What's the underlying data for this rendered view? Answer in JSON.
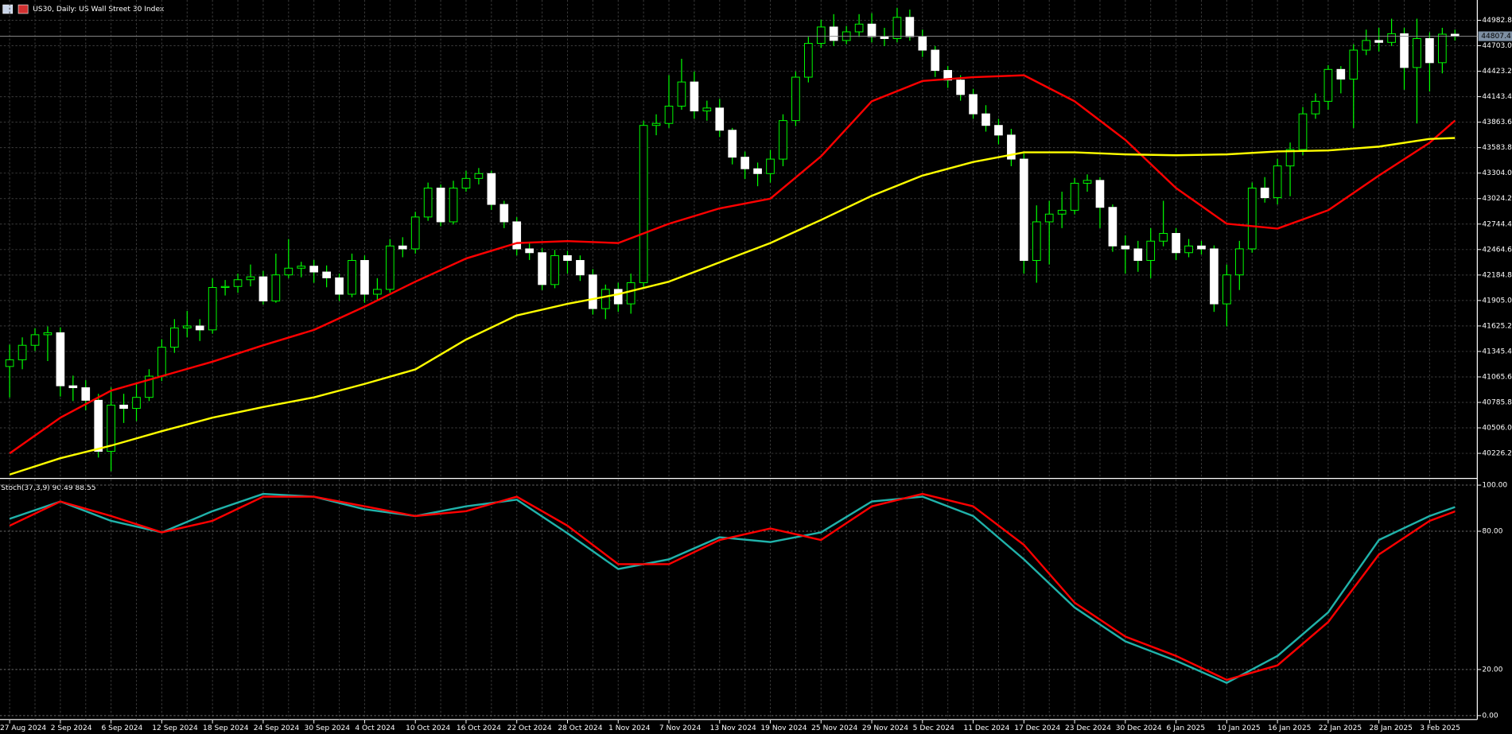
{
  "chart_data": [
    {
      "type": "candlestick",
      "title": "US30, Daily:  US Wall Street 30 Index",
      "categories": [
        "27 Aug 2024",
        null,
        null,
        null,
        "2 Sep 2024",
        null,
        null,
        null,
        "6 Sep 2024",
        null,
        null,
        null,
        "12 Sep 2024",
        null,
        null,
        null,
        "18 Sep 2024",
        null,
        null,
        null,
        "24 Sep 2024",
        null,
        null,
        null,
        "30 Sep 2024",
        null,
        null,
        null,
        "4 Oct 2024",
        null,
        null,
        null,
        "10 Oct 2024",
        null,
        null,
        null,
        "16 Oct 2024",
        null,
        null,
        null,
        "22 Oct 2024",
        null,
        null,
        null,
        "28 Oct 2024",
        null,
        null,
        null,
        "1 Nov 2024",
        null,
        null,
        null,
        "7 Nov 2024",
        null,
        null,
        null,
        "13 Nov 2024",
        null,
        null,
        null,
        "19 Nov 2024",
        null,
        null,
        null,
        "25 Nov 2024",
        null,
        null,
        null,
        "29 Nov 2024",
        null,
        null,
        null,
        "5 Dec 2024",
        null,
        null,
        null,
        "11 Dec 2024",
        null,
        null,
        null,
        "17 Dec 2024",
        null,
        null,
        null,
        "23 Dec 2024",
        null,
        null,
        null,
        "30 Dec 2024",
        null,
        null,
        null,
        "6 Jan 2025",
        null,
        null,
        null,
        "10 Jan 2025",
        null,
        null,
        null,
        "16 Jan 2025",
        null,
        null,
        null,
        "22 Jan 2025",
        null,
        null,
        null,
        "28 Jan 2025",
        null,
        null,
        null,
        "3 Feb 2025",
        null,
        null
      ],
      "open": [
        41180,
        41254,
        41413,
        41529,
        41551,
        40968,
        40947,
        40809,
        40248,
        40756,
        40720,
        40841,
        41074,
        41392,
        41604,
        41625,
        41582,
        42048,
        42059,
        42133,
        42165,
        41900,
        42186,
        42260,
        42282,
        42218,
        42154,
        41974,
        42345,
        41974,
        42027,
        42504,
        42472,
        42822,
        43140,
        42769,
        43140,
        43246,
        43299,
        42960,
        42769,
        42472,
        42430,
        42080,
        42398,
        42345,
        42186,
        41816,
        42027,
        41868,
        42100,
        43828,
        43850,
        44040,
        44305,
        43987,
        44019,
        43775,
        43479,
        43352,
        43299,
        43458,
        43881,
        44358,
        44729,
        44909,
        44761,
        44856,
        44941,
        44803,
        44782,
        45015,
        44803,
        44655,
        44432,
        44326,
        44167,
        43955,
        43828,
        43722,
        43458,
        42345,
        42769,
        42854,
        42896,
        43193,
        43224,
        42928,
        42504,
        42472,
        42345,
        42557,
        42642,
        42430,
        42504,
        42472,
        41868,
        42186,
        42472,
        43140,
        43034,
        43383,
        43563,
        43955,
        44093,
        44443,
        44337,
        44655,
        44761,
        44740,
        44835,
        44464,
        44782,
        44517,
        44830
      ],
      "high": [
        41420,
        41500,
        41600,
        41620,
        41610,
        41080,
        41030,
        40880,
        40950,
        40880,
        41000,
        41150,
        41480,
        41700,
        41790,
        41700,
        42150,
        42130,
        42200,
        42300,
        42230,
        42420,
        42580,
        42330,
        42350,
        42290,
        42200,
        42420,
        42400,
        42150,
        42580,
        42600,
        42880,
        43200,
        43180,
        43220,
        43330,
        43360,
        43330,
        43000,
        42820,
        42550,
        42480,
        42460,
        42450,
        42400,
        42250,
        42080,
        42100,
        42200,
        43880,
        43950,
        44380,
        44560,
        44420,
        44100,
        44120,
        43800,
        43540,
        43420,
        43560,
        43950,
        44420,
        44800,
        44990,
        45050,
        44920,
        45050,
        45060,
        44900,
        45120,
        45100,
        44880,
        44700,
        44480,
        44380,
        44230,
        44050,
        43900,
        43790,
        43520,
        42950,
        43000,
        43100,
        43250,
        43290,
        43260,
        42960,
        42620,
        42560,
        42700,
        43000,
        42700,
        42580,
        42560,
        42510,
        42300,
        42560,
        43200,
        43260,
        43460,
        43640,
        44030,
        44180,
        44490,
        44480,
        44720,
        44880,
        44900,
        45000,
        44900,
        45000,
        44850,
        44900,
        44880
      ],
      "low": [
        40840,
        41150,
        41350,
        41240,
        40850,
        40800,
        40700,
        40180,
        40030,
        40560,
        40580,
        40800,
        41020,
        41330,
        41500,
        41460,
        41540,
        41960,
        41990,
        42060,
        41860,
        41880,
        42150,
        42160,
        42100,
        42050,
        41900,
        41940,
        41880,
        41900,
        41990,
        42380,
        42420,
        42780,
        42720,
        42740,
        43100,
        43180,
        42900,
        42700,
        42400,
        42350,
        42020,
        42040,
        42200,
        42120,
        41750,
        41700,
        41780,
        41760,
        42050,
        43720,
        43800,
        44000,
        43900,
        43880,
        43700,
        43400,
        43240,
        43160,
        43200,
        43380,
        43820,
        44300,
        44680,
        44700,
        44720,
        44800,
        44740,
        44700,
        44740,
        44760,
        44580,
        44360,
        44240,
        44100,
        43900,
        43760,
        43620,
        43380,
        42200,
        42100,
        42300,
        42700,
        42850,
        43100,
        42700,
        42440,
        42200,
        42220,
        42150,
        42500,
        42350,
        42380,
        42410,
        41780,
        41620,
        42020,
        42430,
        42980,
        42960,
        43050,
        43500,
        43900,
        44000,
        44180,
        43800,
        44600,
        44640,
        44700,
        44220,
        43850,
        44200,
        44400,
        44760
      ],
      "close": [
        41254,
        41413,
        41529,
        41551,
        40968,
        40947,
        40809,
        40248,
        40756,
        40720,
        40841,
        41074,
        41392,
        41604,
        41625,
        41582,
        42048,
        42059,
        42133,
        42165,
        41900,
        42186,
        42260,
        42282,
        42218,
        42154,
        41974,
        42345,
        41974,
        42027,
        42504,
        42472,
        42822,
        43140,
        42769,
        43140,
        43246,
        43299,
        42960,
        42769,
        42472,
        42430,
        42080,
        42398,
        42345,
        42186,
        41816,
        42027,
        41868,
        42100,
        43828,
        43850,
        44040,
        44305,
        43987,
        44019,
        43775,
        43479,
        43352,
        43299,
        43458,
        43881,
        44358,
        44729,
        44909,
        44761,
        44856,
        44941,
        44803,
        44782,
        45015,
        44803,
        44655,
        44432,
        44326,
        44167,
        43955,
        43828,
        43722,
        43458,
        42345,
        42769,
        42854,
        42896,
        43193,
        43224,
        42928,
        42504,
        42472,
        42345,
        42557,
        42642,
        42430,
        42504,
        42472,
        41868,
        42186,
        42472,
        43140,
        43034,
        43383,
        43563,
        43955,
        44093,
        44443,
        44337,
        44655,
        44761,
        44740,
        44835,
        44464,
        44782,
        44517,
        44830,
        44807.4
      ],
      "up_color": "#00ff00",
      "down_color": "#ffffff",
      "series": [
        {
          "color": "#ff0000",
          "x": [
            0,
            4,
            8,
            12,
            16,
            20,
            24,
            28,
            32,
            36,
            40,
            44,
            48,
            52,
            56,
            60,
            64,
            68,
            72,
            76,
            80,
            84,
            88,
            92,
            96,
            100,
            104,
            108,
            112,
            114
          ],
          "values": [
            40226,
            40618,
            40915,
            41074,
            41233,
            41413,
            41582,
            41837,
            42112,
            42366,
            42536,
            42557,
            42536,
            42748,
            42917,
            43023,
            43489,
            44093,
            44316,
            44358,
            44379,
            44093,
            43669,
            43140,
            42748,
            42695,
            42896,
            43277,
            43638,
            43881
          ]
        },
        {
          "color": "#ffff00",
          "x": [
            0,
            4,
            8,
            12,
            16,
            20,
            24,
            28,
            32,
            36,
            40,
            44,
            48,
            52,
            56,
            60,
            64,
            68,
            72,
            76,
            80,
            84,
            88,
            92,
            96,
            100,
            104,
            108,
            112,
            114
          ],
          "values": [
            39993,
            40173,
            40311,
            40470,
            40618,
            40735,
            40841,
            40989,
            41148,
            41476,
            41741,
            41868,
            41974,
            42112,
            42324,
            42536,
            42790,
            43055,
            43277,
            43426,
            43532,
            43532,
            43510,
            43500,
            43510,
            43542,
            43553,
            43595,
            43680,
            43690
          ]
        }
      ],
      "last_price": 44807.4,
      "ylim": [
        39961.5,
        45205.5
      ],
      "yticks": [
        44982.8,
        {
          "value": 44703,
          "label": "44703.0"
        },
        44423.2,
        44143.4,
        43863.6,
        43583.8,
        {
          "value": 43304,
          "label": "43304.0"
        },
        43024.2,
        42744.4,
        42464.6,
        42184.8,
        {
          "value": 41905,
          "label": "41905.0"
        },
        41625.2,
        41345.4,
        41065.6,
        40785.8,
        {
          "value": 40506,
          "label": "40506.0"
        },
        40226.2
      ],
      "grid": true
    },
    {
      "type": "line",
      "title": "Stoch(37,3,9) 90.49 88.55",
      "series": [
        {
          "color": "#20b2aa",
          "x": [
            0,
            4,
            8,
            12,
            16,
            20,
            24,
            28,
            32,
            36,
            40,
            44,
            48,
            52,
            56,
            60,
            64,
            68,
            72,
            76,
            80,
            84,
            88,
            92,
            96,
            100,
            104,
            108,
            112,
            114
          ],
          "values": [
            85.4,
            92.9,
            84.5,
            79.5,
            88.7,
            96.2,
            95,
            89.5,
            86.6,
            90.8,
            93.7,
            79.1,
            63.6,
            67.8,
            77.4,
            75.3,
            79.5,
            92.9,
            95,
            86.6,
            67.8,
            46.9,
            32.2,
            23.8,
            14.2,
            25.9,
            44.8,
            76.2,
            86.6,
            90.5
          ]
        },
        {
          "color": "#ff0000",
          "x": [
            0,
            4,
            8,
            12,
            16,
            20,
            24,
            28,
            32,
            36,
            40,
            44,
            48,
            52,
            56,
            60,
            64,
            68,
            72,
            76,
            80,
            84,
            88,
            92,
            96,
            100,
            104,
            108,
            112,
            114
          ],
          "values": [
            82.4,
            92.9,
            86.6,
            79.5,
            84.5,
            95,
            95,
            90.8,
            86.6,
            88.7,
            95,
            82.4,
            65.7,
            65.7,
            76.2,
            81.2,
            76.2,
            90.8,
            96.2,
            90.8,
            74.1,
            49,
            34.3,
            25.9,
            15.5,
            21.8,
            40.6,
            69.9,
            84.5,
            88.6
          ]
        }
      ],
      "ylim": [
        -1.7,
        102.5
      ],
      "yticks": [
        {
          "value": 100,
          "label": "100.00"
        },
        {
          "value": 80,
          "label": "80.00"
        },
        {
          "value": 20,
          "label": "20.00"
        },
        {
          "value": 0,
          "label": "0.00"
        }
      ]
    }
  ]
}
